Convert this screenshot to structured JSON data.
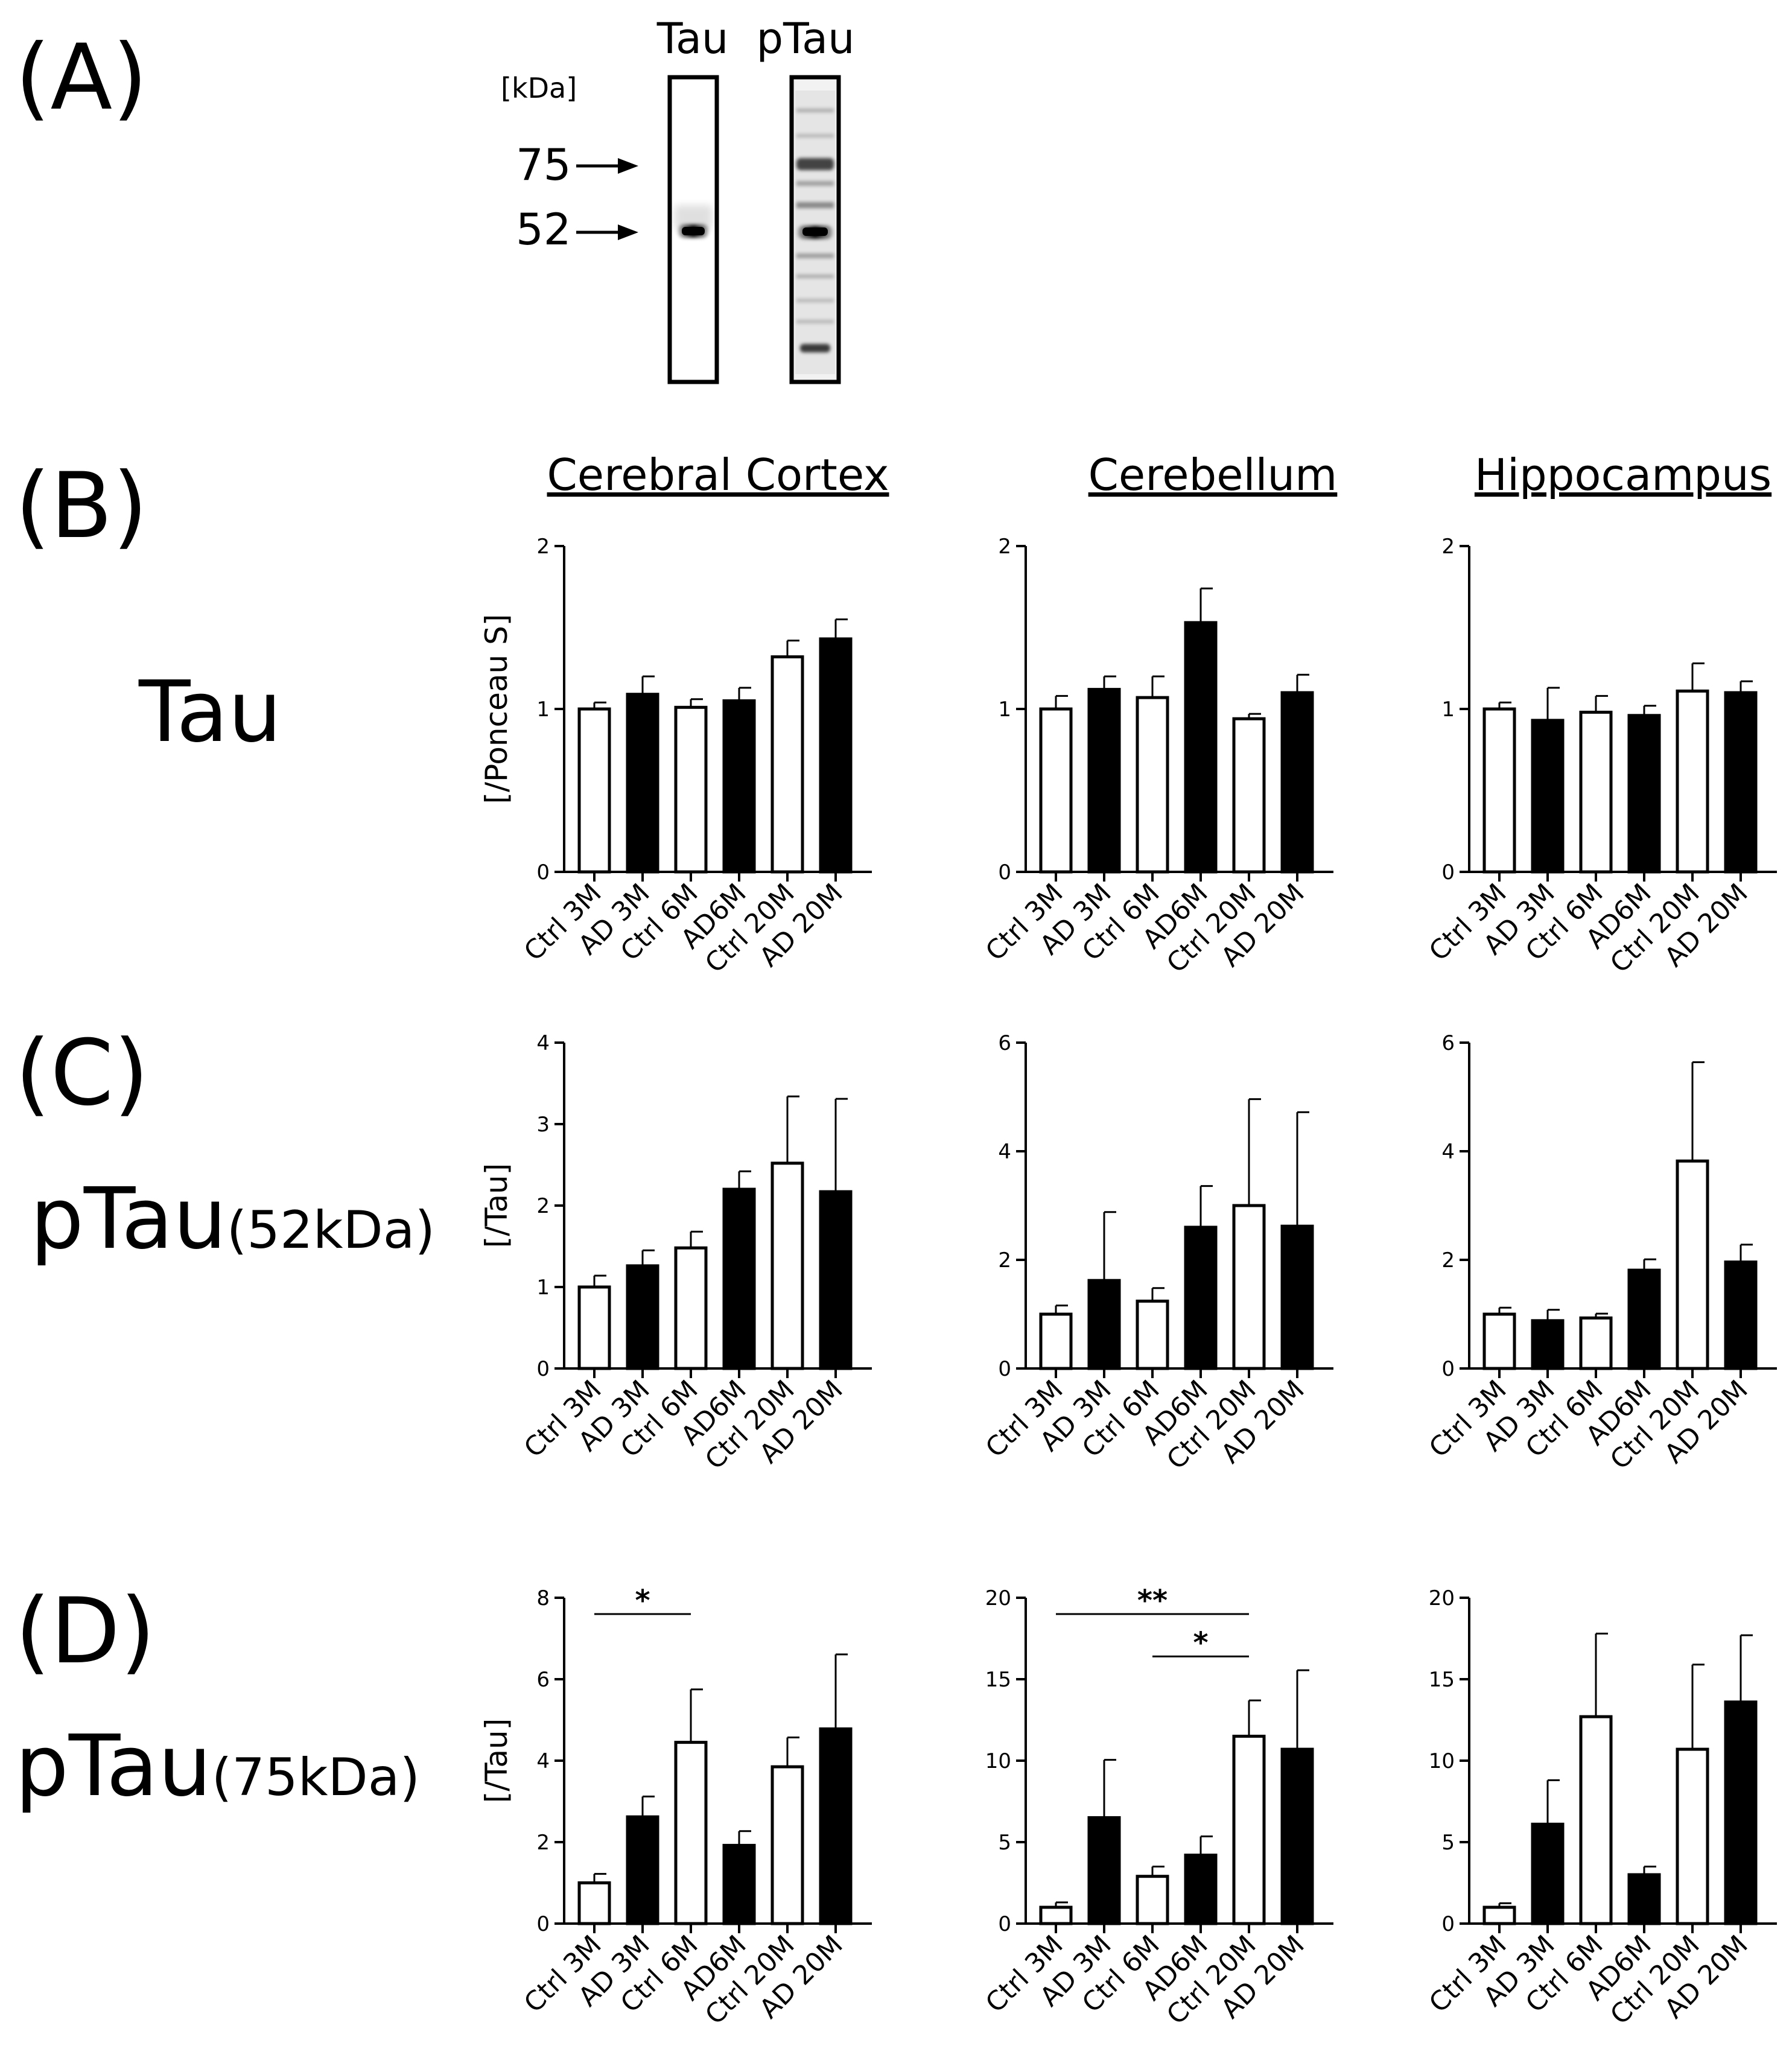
{
  "panel_labels": [
    "(A)",
    "(B)",
    "(C)",
    "(D)"
  ],
  "blot": {
    "lanes": [
      "Tau",
      "pTau"
    ],
    "unit_label": "[kDa]",
    "markers": [
      "75",
      "52"
    ]
  },
  "regions": [
    "Cerebral Cortex",
    "Cerebellum",
    "Hippocampus"
  ],
  "rows": [
    {
      "main": "Tau",
      "sub": ""
    },
    {
      "main": "pTau",
      "sub": "(52kDa)"
    },
    {
      "main": "pTau",
      "sub": "(75kDa)"
    }
  ],
  "chart_data": [
    {
      "type": "bar",
      "row": 0,
      "col": 0,
      "title": "Cerebral Cortex",
      "ylabel": "[/Ponceau S]",
      "categories": [
        "Ctrl 3M",
        "AD 3M",
        "Ctrl 6M",
        "AD6M",
        "Ctrl 20M",
        "AD 20M"
      ],
      "fills": [
        "white",
        "black",
        "white",
        "black",
        "white",
        "black"
      ],
      "values": [
        1.0,
        1.09,
        1.01,
        1.05,
        1.32,
        1.43
      ],
      "errors": [
        0.04,
        0.11,
        0.05,
        0.08,
        0.1,
        0.12
      ],
      "ylim": [
        0,
        2
      ],
      "yticks": [
        "0",
        "1",
        "2"
      ],
      "significance": []
    },
    {
      "type": "bar",
      "row": 0,
      "col": 1,
      "title": "Cerebellum",
      "ylabel": "",
      "categories": [
        "Ctrl 3M",
        "AD 3M",
        "Ctrl 6M",
        "AD6M",
        "Ctrl 20M",
        "AD 20M"
      ],
      "fills": [
        "white",
        "black",
        "white",
        "black",
        "white",
        "black"
      ],
      "values": [
        1.0,
        1.12,
        1.07,
        1.53,
        0.94,
        1.1
      ],
      "errors": [
        0.08,
        0.08,
        0.13,
        0.21,
        0.03,
        0.11
      ],
      "ylim": [
        0,
        2
      ],
      "yticks": [
        "0",
        "1",
        "2"
      ],
      "significance": []
    },
    {
      "type": "bar",
      "row": 0,
      "col": 2,
      "title": "Hippocampus",
      "ylabel": "",
      "categories": [
        "Ctrl 3M",
        "AD 3M",
        "Ctrl 6M",
        "AD6M",
        "Ctrl 20M",
        "AD 20M"
      ],
      "fills": [
        "white",
        "black",
        "white",
        "black",
        "white",
        "black"
      ],
      "values": [
        1.0,
        0.93,
        0.98,
        0.96,
        1.11,
        1.1
      ],
      "errors": [
        0.04,
        0.2,
        0.1,
        0.06,
        0.17,
        0.07
      ],
      "ylim": [
        0,
        2
      ],
      "yticks": [
        "0",
        "1",
        "2"
      ],
      "significance": []
    },
    {
      "type": "bar",
      "row": 1,
      "col": 0,
      "title": "",
      "ylabel": "[/Tau]",
      "categories": [
        "Ctrl 3M",
        "AD 3M",
        "Ctrl 6M",
        "AD6M",
        "Ctrl 20M",
        "AD 20M"
      ],
      "fills": [
        "white",
        "black",
        "white",
        "black",
        "white",
        "black"
      ],
      "values": [
        1.0,
        1.26,
        1.48,
        2.2,
        2.52,
        2.17
      ],
      "errors": [
        0.14,
        0.19,
        0.2,
        0.22,
        0.82,
        1.14
      ],
      "ylim": [
        0,
        4
      ],
      "yticks": [
        "0",
        "1",
        "2",
        "3",
        "4"
      ],
      "significance": []
    },
    {
      "type": "bar",
      "row": 1,
      "col": 1,
      "title": "",
      "ylabel": "",
      "categories": [
        "Ctrl 3M",
        "AD 3M",
        "Ctrl 6M",
        "AD6M",
        "Ctrl 20M",
        "AD 20M"
      ],
      "fills": [
        "white",
        "black",
        "white",
        "black",
        "white",
        "black"
      ],
      "values": [
        1.0,
        1.62,
        1.24,
        2.6,
        3.0,
        2.62
      ],
      "errors": [
        0.16,
        1.26,
        0.24,
        0.76,
        1.96,
        2.1
      ],
      "ylim": [
        0,
        6
      ],
      "yticks": [
        "0",
        "2",
        "4",
        "6"
      ],
      "significance": []
    },
    {
      "type": "bar",
      "row": 1,
      "col": 2,
      "title": "",
      "ylabel": "",
      "categories": [
        "Ctrl 3M",
        "AD 3M",
        "Ctrl 6M",
        "AD6M",
        "Ctrl 20M",
        "AD 20M"
      ],
      "fills": [
        "white",
        "black",
        "white",
        "black",
        "white",
        "black"
      ],
      "values": [
        1.0,
        0.88,
        0.93,
        1.81,
        3.82,
        1.96
      ],
      "errors": [
        0.12,
        0.2,
        0.08,
        0.2,
        1.82,
        0.32
      ],
      "ylim": [
        0,
        6
      ],
      "yticks": [
        "0",
        "2",
        "4",
        "6"
      ],
      "significance": []
    },
    {
      "type": "bar",
      "row": 2,
      "col": 0,
      "title": "",
      "ylabel": "[/Tau]",
      "categories": [
        "Ctrl 3M",
        "AD 3M",
        "Ctrl 6M",
        "AD6M",
        "Ctrl 20M",
        "AD 20M"
      ],
      "fills": [
        "white",
        "black",
        "white",
        "black",
        "white",
        "black"
      ],
      "values": [
        1.0,
        2.62,
        4.45,
        1.92,
        3.85,
        4.78
      ],
      "errors": [
        0.22,
        0.5,
        1.3,
        0.35,
        0.72,
        1.83
      ],
      "ylim": [
        0,
        8
      ],
      "yticks": [
        "0",
        "2",
        "4",
        "6",
        "8"
      ],
      "significance": [
        {
          "from": 0,
          "to": 2,
          "value": 7.6,
          "label": "*"
        }
      ]
    },
    {
      "type": "bar",
      "row": 2,
      "col": 1,
      "title": "",
      "ylabel": "",
      "categories": [
        "Ctrl 3M",
        "AD 3M",
        "Ctrl 6M",
        "AD6M",
        "Ctrl 20M",
        "AD 20M"
      ],
      "fills": [
        "white",
        "black",
        "white",
        "black",
        "white",
        "black"
      ],
      "values": [
        1.0,
        6.5,
        2.9,
        4.2,
        11.5,
        10.7
      ],
      "errors": [
        0.3,
        3.55,
        0.6,
        1.15,
        2.2,
        4.85
      ],
      "ylim": [
        0,
        20
      ],
      "yticks": [
        "0",
        "5",
        "10",
        "15",
        "20"
      ],
      "significance": [
        {
          "from": 0,
          "to": 4,
          "value": 19.0,
          "label": "**"
        },
        {
          "from": 2,
          "to": 4,
          "value": 16.4,
          "label": "*"
        }
      ]
    },
    {
      "type": "bar",
      "row": 2,
      "col": 2,
      "title": "",
      "ylabel": "",
      "categories": [
        "Ctrl 3M",
        "AD 3M",
        "Ctrl 6M",
        "AD6M",
        "Ctrl 20M",
        "AD 20M"
      ],
      "fills": [
        "white",
        "black",
        "white",
        "black",
        "white",
        "black"
      ],
      "values": [
        1.0,
        6.1,
        12.7,
        3.0,
        10.7,
        13.6
      ],
      "errors": [
        0.25,
        2.7,
        5.1,
        0.5,
        5.2,
        4.1
      ],
      "ylim": [
        0,
        20
      ],
      "yticks": [
        "0",
        "5",
        "10",
        "15",
        "20"
      ],
      "significance": []
    }
  ]
}
